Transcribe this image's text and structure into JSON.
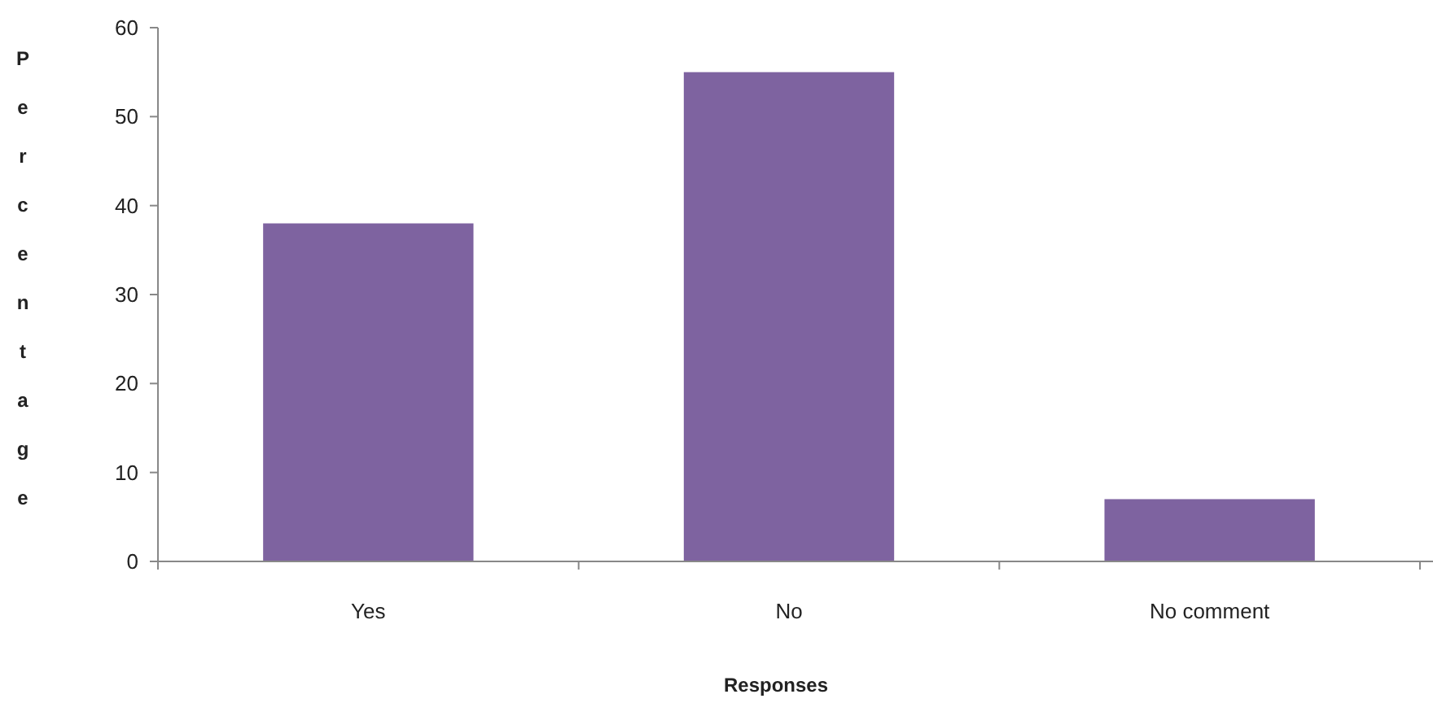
{
  "chart_data": {
    "type": "bar",
    "xlabel": "Responses",
    "ylabel": "Percentage",
    "categories": [
      "Yes",
      "No",
      "No comment"
    ],
    "values": [
      38,
      55,
      7
    ],
    "color": "#7e63a0",
    "ylim": [
      0,
      60
    ],
    "yticks": [
      0,
      10,
      20,
      30,
      40,
      50,
      60
    ],
    "grid": false
  }
}
